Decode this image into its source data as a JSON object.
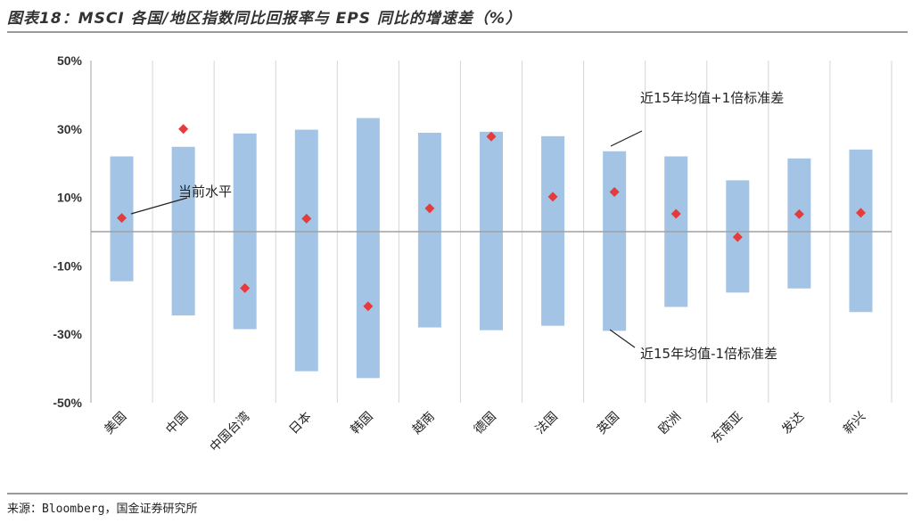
{
  "title": "图表18：MSCI 各国/地区指数同比回报率与 EPS 同比的增速差（%）",
  "source": "来源：Bloomberg，国金证券研究所",
  "annotations": {
    "current": "当前水平",
    "upper": "近15年均值+1倍标准差",
    "lower": "近15年均值-1倍标准差"
  },
  "colors": {
    "band": "#a4c4e6",
    "marker": "#e53b3b",
    "axis": "#a0a0a0",
    "grid": "#d6d6d6"
  },
  "chart_data": {
    "type": "range-bar with markers",
    "ylim": [
      -50,
      50
    ],
    "yticks": [
      "50%",
      "30%",
      "10%",
      "-10%",
      "-30%",
      "-50%"
    ],
    "ytick_values": [
      50,
      30,
      10,
      -10,
      -30,
      -50
    ],
    "categories": [
      "美国",
      "中国",
      "中国台湾",
      "日本",
      "韩国",
      "越南",
      "德国",
      "法国",
      "英国",
      "欧洲",
      "东南亚",
      "发达",
      "新兴"
    ],
    "series": [
      {
        "name": "近15年均值+1倍标准差",
        "values": [
          22.0,
          24.8,
          28.7,
          29.8,
          33.2,
          28.9,
          29.2,
          27.9,
          23.5,
          22.0,
          15.0,
          21.4,
          24.0
        ]
      },
      {
        "name": "近15年均值-1倍标准差",
        "values": [
          -14.5,
          -24.5,
          -28.5,
          -40.8,
          -42.8,
          -28.0,
          -28.8,
          -27.5,
          -29.0,
          -22.0,
          -17.8,
          -16.6,
          -23.5
        ]
      },
      {
        "name": "当前水平",
        "values": [
          4.0,
          30.0,
          -16.5,
          3.8,
          -21.8,
          6.8,
          27.8,
          10.2,
          11.6,
          5.2,
          -1.6,
          5.1,
          5.5
        ]
      }
    ]
  }
}
